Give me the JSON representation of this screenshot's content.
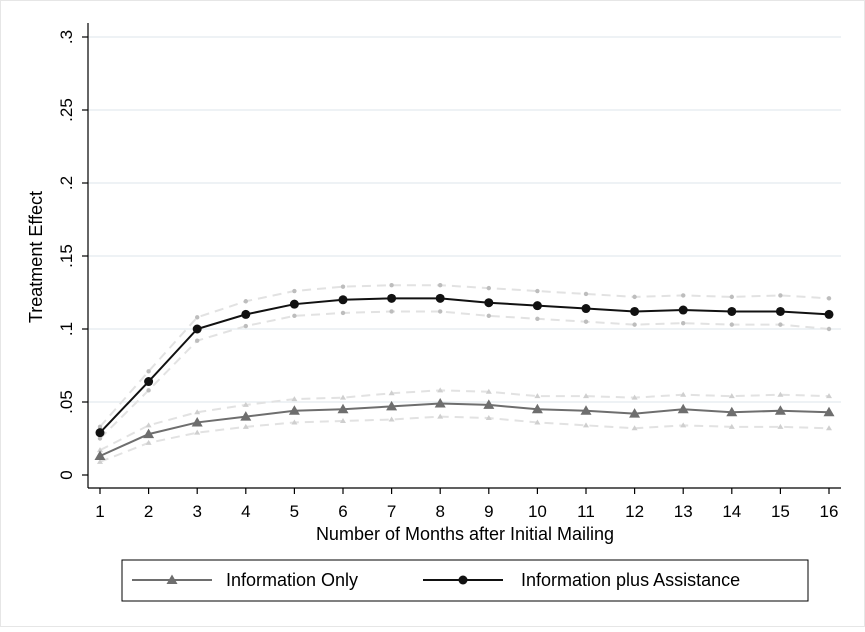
{
  "chart_data": {
    "type": "line",
    "title": "",
    "xlabel": "Number of Months after Initial Mailing",
    "ylabel": "Treatment Effect",
    "x": [
      1,
      2,
      3,
      4,
      5,
      6,
      7,
      8,
      9,
      10,
      11,
      12,
      13,
      14,
      15,
      16
    ],
    "xticks": [
      "1",
      "2",
      "3",
      "4",
      "5",
      "6",
      "7",
      "8",
      "9",
      "10",
      "11",
      "12",
      "13",
      "14",
      "15",
      "16"
    ],
    "ylim": [
      0,
      0.3
    ],
    "yticks": [
      0,
      0.05,
      0.1,
      0.15,
      0.2,
      0.25,
      0.3
    ],
    "ytick_labels": [
      "0",
      ".05",
      ".1",
      ".15",
      ".2",
      ".25",
      ".3"
    ],
    "grid": "horizontal",
    "legend_position": "bottom",
    "series": [
      {
        "name": "Information Only",
        "color": "#6e6e6e",
        "marker": "triangle",
        "values": [
          0.013,
          0.028,
          0.036,
          0.04,
          0.044,
          0.045,
          0.047,
          0.049,
          0.048,
          0.045,
          0.044,
          0.042,
          0.045,
          0.043,
          0.044,
          0.043
        ],
        "ci_upper": [
          0.017,
          0.034,
          0.043,
          0.048,
          0.052,
          0.053,
          0.056,
          0.058,
          0.057,
          0.054,
          0.054,
          0.053,
          0.055,
          0.054,
          0.055,
          0.054
        ],
        "ci_lower": [
          0.009,
          0.022,
          0.029,
          0.033,
          0.036,
          0.037,
          0.038,
          0.04,
          0.039,
          0.036,
          0.034,
          0.032,
          0.034,
          0.033,
          0.033,
          0.032
        ]
      },
      {
        "name": "Information plus Assistance",
        "color": "#111111",
        "marker": "circle",
        "values": [
          0.029,
          0.064,
          0.1,
          0.11,
          0.117,
          0.12,
          0.121,
          0.121,
          0.118,
          0.116,
          0.114,
          0.112,
          0.113,
          0.112,
          0.112,
          0.11
        ],
        "ci_upper": [
          0.033,
          0.071,
          0.108,
          0.119,
          0.126,
          0.129,
          0.13,
          0.13,
          0.128,
          0.126,
          0.124,
          0.122,
          0.123,
          0.122,
          0.123,
          0.121
        ],
        "ci_lower": [
          0.025,
          0.058,
          0.092,
          0.102,
          0.109,
          0.111,
          0.112,
          0.112,
          0.109,
          0.107,
          0.105,
          0.103,
          0.104,
          0.103,
          0.103,
          0.1
        ]
      }
    ]
  }
}
